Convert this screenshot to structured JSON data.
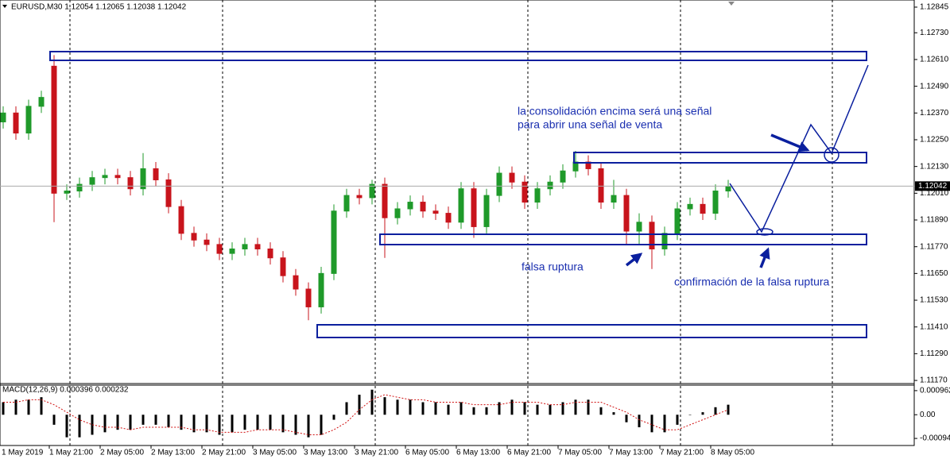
{
  "chart_data": [
    {
      "type": "candlestick",
      "title": "EURUSD,M30  1.12054 1.12065 1.12038 1.12042",
      "categories": [
        "1 May 2019",
        "1 May 21:00",
        "2 May 05:00",
        "2 May 13:00",
        "2 May 21:00",
        "3 May 05:00",
        "3 May 13:00",
        "3 May 21:00",
        "6 May 05:00",
        "6 May 13:00",
        "6 May 21:00",
        "7 May 05:00",
        "7 May 13:00",
        "7 May 21:00",
        "8 May 05:00"
      ],
      "open": [
        1.1233,
        1.1237,
        1.1228,
        1.124,
        1.1258,
        1.1201,
        1.1202,
        1.1205,
        1.1208,
        1.1209,
        1.1208,
        1.1203,
        1.1212,
        1.1207,
        1.1195,
        1.1183,
        1.118,
        1.1178,
        1.1174,
        1.1176,
        1.1178,
        1.1176,
        1.1172,
        1.1164,
        1.1158,
        1.115,
        1.1165,
        1.1193,
        1.12,
        1.1199,
        1.1205,
        1.119,
        1.1194,
        1.1197,
        1.1193,
        1.1192,
        1.1188,
        1.1203,
        1.1186,
        1.12,
        1.121,
        1.1206,
        1.1197,
        1.1203,
        1.1206,
        1.1211,
        1.1215,
        1.1212,
        1.1197,
        1.12,
        1.1184,
        1.1188,
        1.1176,
        1.1183,
        1.1194,
        1.1196,
        1.1192,
        1.1202
      ],
      "high": [
        1.124,
        1.124,
        1.1243,
        1.1247,
        1.1263,
        1.1205,
        1.1208,
        1.1211,
        1.1212,
        1.1212,
        1.1211,
        1.1219,
        1.1215,
        1.121,
        1.1198,
        1.1186,
        1.1183,
        1.1181,
        1.1179,
        1.1181,
        1.1181,
        1.1179,
        1.1175,
        1.1167,
        1.1161,
        1.1168,
        1.1196,
        1.1203,
        1.1203,
        1.1207,
        1.1208,
        1.1197,
        1.12,
        1.12,
        1.1196,
        1.1195,
        1.1206,
        1.1206,
        1.1203,
        1.1213,
        1.1213,
        1.1209,
        1.1206,
        1.1209,
        1.1214,
        1.122,
        1.1218,
        1.1215,
        1.1207,
        1.1203,
        1.1192,
        1.1191,
        1.1186,
        1.1197,
        1.1199,
        1.1199,
        1.1205,
        1.1207
      ],
      "low": [
        1.123,
        1.1225,
        1.1225,
        1.1237,
        1.1188,
        1.1198,
        1.1199,
        1.1202,
        1.1205,
        1.1205,
        1.12,
        1.12,
        1.1204,
        1.1192,
        1.118,
        1.1177,
        1.1175,
        1.1171,
        1.1171,
        1.1173,
        1.1173,
        1.1169,
        1.1161,
        1.1155,
        1.1144,
        1.1147,
        1.1162,
        1.119,
        1.1196,
        1.1196,
        1.1172,
        1.1187,
        1.1191,
        1.119,
        1.1189,
        1.1185,
        1.1185,
        1.1181,
        1.1183,
        1.1197,
        1.1203,
        1.1194,
        1.1194,
        1.12,
        1.1203,
        1.1208,
        1.1209,
        1.1194,
        1.1194,
        1.1178,
        1.1178,
        1.1167,
        1.1173,
        1.118,
        1.1191,
        1.1189,
        1.1189,
        1.1199
      ],
      "close": [
        1.1237,
        1.1228,
        1.124,
        1.1244,
        1.1201,
        1.1202,
        1.1205,
        1.1208,
        1.1209,
        1.1208,
        1.1203,
        1.1212,
        1.1207,
        1.1195,
        1.1183,
        1.118,
        1.1178,
        1.1174,
        1.1176,
        1.1178,
        1.1176,
        1.1172,
        1.1164,
        1.1158,
        1.115,
        1.1165,
        1.1193,
        1.12,
        1.1199,
        1.1205,
        1.119,
        1.1194,
        1.1197,
        1.1193,
        1.1192,
        1.1188,
        1.1203,
        1.1186,
        1.12,
        1.121,
        1.1206,
        1.1197,
        1.1203,
        1.1206,
        1.1211,
        1.1215,
        1.1212,
        1.1197,
        1.12,
        1.1184,
        1.1188,
        1.1176,
        1.1183,
        1.1194,
        1.1196,
        1.1192,
        1.1202,
        1.1204
      ],
      "up_color": "#1f9a2a",
      "down_color": "#c8141c",
      "ylim": [
        1.11156,
        1.12877
      ],
      "yticks": [
        1.12845,
        {
          "value": 1.1273,
          "label": "1.12730"
        },
        {
          "value": 1.1261,
          "label": "1.12610"
        },
        {
          "value": 1.1249,
          "label": "1.12490"
        },
        {
          "value": 1.1237,
          "label": "1.12370"
        },
        {
          "value": 1.1225,
          "label": "1.12250"
        },
        {
          "value": 1.1213,
          "label": "1.12130"
        },
        {
          "value": 1.1201,
          "label": "1.12010"
        },
        {
          "value": 1.1189,
          "label": "1.11890"
        },
        {
          "value": 1.1177,
          "label": "1.11770"
        },
        {
          "value": 1.1165,
          "label": "1.11650"
        },
        {
          "value": 1.1153,
          "label": "1.11530"
        },
        {
          "value": 1.1141,
          "label": "1.11410"
        },
        {
          "value": 1.1129,
          "label": "1.11290"
        },
        {
          "value": 1.1117,
          "label": "1.11170"
        }
      ],
      "last_price": 1.12042,
      "annotations": [
        "la consolidación encima será una señal",
        "para abrir una señal de venta",
        "falsa ruptura",
        "confirmación de la falsa ruptura"
      ]
    },
    {
      "type": "macd",
      "title": "MACD(12,26,9) 0.000396 0.000232",
      "values": [
        0.0005,
        0.0006,
        0.0006,
        0.0007,
        -0.0004,
        -0.0009,
        -0.0009,
        -0.0008,
        -0.0007,
        -0.0006,
        -0.0006,
        -0.0004,
        -0.0004,
        -0.0005,
        -0.0006,
        -0.0007,
        -0.0007,
        -0.0008,
        -0.0007,
        -0.0006,
        -0.0006,
        -0.0006,
        -0.0007,
        -0.0008,
        -0.0009,
        -0.0008,
        -0.0002,
        0.0005,
        0.0008,
        0.001,
        0.0007,
        0.0006,
        0.0006,
        0.0005,
        0.0005,
        0.0004,
        0.0005,
        0.0003,
        0.0003,
        0.0005,
        0.0006,
        0.0005,
        0.0004,
        0.0004,
        0.0005,
        0.0006,
        0.0006,
        0.0003,
        0.0001,
        -0.0003,
        -0.0005,
        -0.0007,
        -0.0007,
        -0.0004,
        0.0,
        0.0001,
        0.0003,
        0.0004
      ],
      "signal": [
        0.0005,
        0.0005,
        0.0006,
        0.0006,
        0.0004,
        0.0001,
        -0.0002,
        -0.0004,
        -0.0005,
        -0.0005,
        -0.0006,
        -0.0005,
        -0.0005,
        -0.0005,
        -0.0005,
        -0.0006,
        -0.0006,
        -0.0007,
        -0.0007,
        -0.0007,
        -0.0006,
        -0.0006,
        -0.0006,
        -0.0007,
        -0.0008,
        -0.0008,
        -0.0006,
        -0.0003,
        0.0002,
        0.0006,
        0.0008,
        0.0007,
        0.0006,
        0.0006,
        0.0005,
        0.0005,
        0.0005,
        0.0004,
        0.0004,
        0.0004,
        0.0005,
        0.0005,
        0.0005,
        0.0004,
        0.0004,
        0.0005,
        0.0005,
        0.0005,
        0.0003,
        0.0001,
        -0.0002,
        -0.0004,
        -0.0006,
        -0.0006,
        -0.0004,
        -0.0002,
        0.0,
        0.0002
      ],
      "color": "#000000",
      "signal_color": "#d01010",
      "ylim": [
        -0.001228,
        0.001181
      ],
      "yticks": [
        0.000962,
        {
          "value": 0,
          "label": "0.00"
        },
        -0.000946
      ]
    }
  ]
}
